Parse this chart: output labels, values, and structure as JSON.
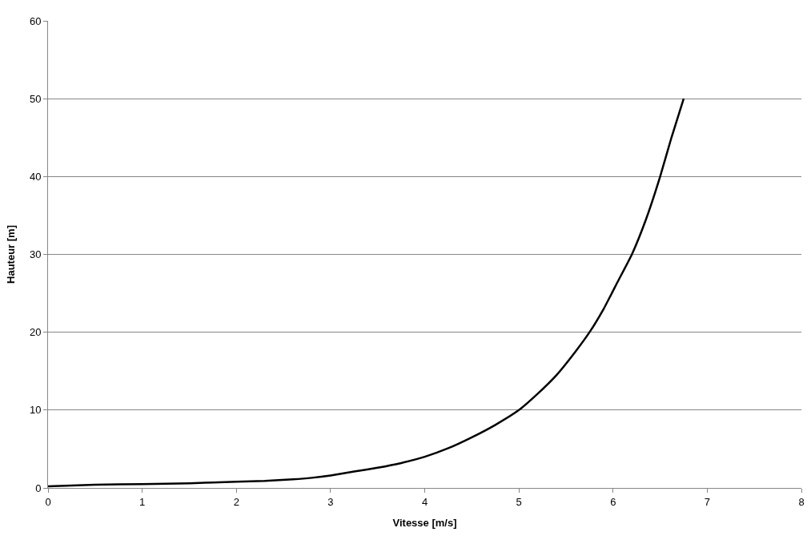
{
  "chart_data": {
    "type": "line",
    "xlabel": "Vitesse [m/s]",
    "ylabel": "Hauteur [m]",
    "series": [
      {
        "color": "#000000",
        "x": [
          0,
          0.5,
          1,
          1.5,
          2,
          2.3,
          2.6,
          2.8,
          3,
          3.25,
          3.5,
          3.75,
          4,
          4.25,
          4.5,
          4.75,
          5,
          5.2,
          5.4,
          5.6,
          5.75,
          5.9,
          6.05,
          6.2,
          6.35,
          6.5,
          6.62,
          6.75
        ],
        "values": [
          0.2,
          0.4,
          0.5,
          0.6,
          0.8,
          0.9,
          1.1,
          1.3,
          1.6,
          2.1,
          2.6,
          3.2,
          4,
          5.1,
          6.5,
          8.1,
          10,
          12.1,
          14.5,
          17.5,
          20,
          23,
          26.5,
          30,
          34.5,
          40,
          45,
          50
        ]
      }
    ],
    "xlim": [
      0,
      8
    ],
    "xticks": [
      0,
      1,
      2,
      3,
      4,
      5,
      6,
      7,
      8
    ],
    "ylim": [
      0,
      60
    ],
    "yticks": [
      0,
      10,
      20,
      30,
      40,
      50,
      60
    ],
    "grid": "y",
    "marker": "none",
    "line_style": "solid"
  }
}
